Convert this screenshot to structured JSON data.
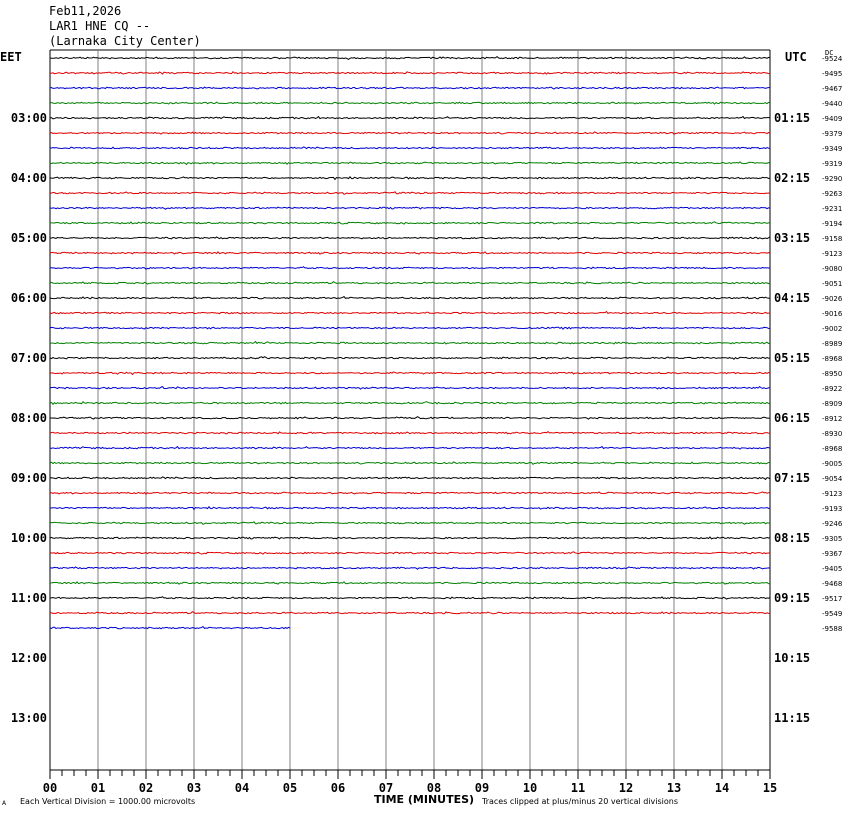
{
  "header": {
    "date": "Feb11,2026",
    "station": "LAR1 HNE CQ --",
    "location": "(Larnaka City Center)",
    "left_timezone": "EET",
    "right_timezone": "UTC",
    "dc_label": "DC"
  },
  "footer": {
    "scale_note": "Each Vertical Division = 1000.00 microvolts",
    "axis_title": "TIME (MINUTES)",
    "clip_note": "Traces clipped at plus/minus 20 vertical divisions",
    "corner_mark": "A"
  },
  "colors": {
    "cycle": [
      "#000000",
      "#e00000",
      "#0000d0",
      "#008000"
    ],
    "grid": "#808080"
  },
  "chart_data": {
    "type": "line",
    "title": "",
    "xlabel": "TIME (MINUTES)",
    "ylabel": "",
    "x_range": [
      0,
      15
    ],
    "x_ticks": [
      "00",
      "01",
      "02",
      "03",
      "04",
      "05",
      "06",
      "07",
      "08",
      "09",
      "10",
      "11",
      "12",
      "13",
      "14",
      "15"
    ],
    "rows_per_hour": 4,
    "left_hour_labels": [
      "03:00",
      "04:00",
      "05:00",
      "06:00",
      "07:00",
      "08:00",
      "09:00",
      "10:00",
      "11:00",
      "12:00",
      "13:00"
    ],
    "right_hour_labels": [
      "01:15",
      "02:15",
      "03:15",
      "04:15",
      "05:15",
      "06:15",
      "07:15",
      "08:15",
      "09:15",
      "10:15",
      "11:15"
    ],
    "row_dc_offsets": [
      "-9524",
      "-9495",
      "-9467",
      "-9440",
      "-9409",
      "-9379",
      "-9349",
      "-9319",
      "-9290",
      "-9263",
      "-9231",
      "-9194",
      "-9158",
      "-9123",
      "-9080",
      "-9051",
      "-9026",
      "-9016",
      "-9002",
      "-8989",
      "-8968",
      "-8950",
      "-8922",
      "-8909",
      "-8912",
      "-8930",
      "-8968",
      "-9005",
      "-9054",
      "-9123",
      "-9193",
      "-9246",
      "-9305",
      "-9367",
      "-9405",
      "-9468",
      "-9517",
      "-9549",
      "-9588"
    ],
    "trace_count": 39,
    "last_trace_end_minute": 5.0,
    "total_rows": 48
  }
}
